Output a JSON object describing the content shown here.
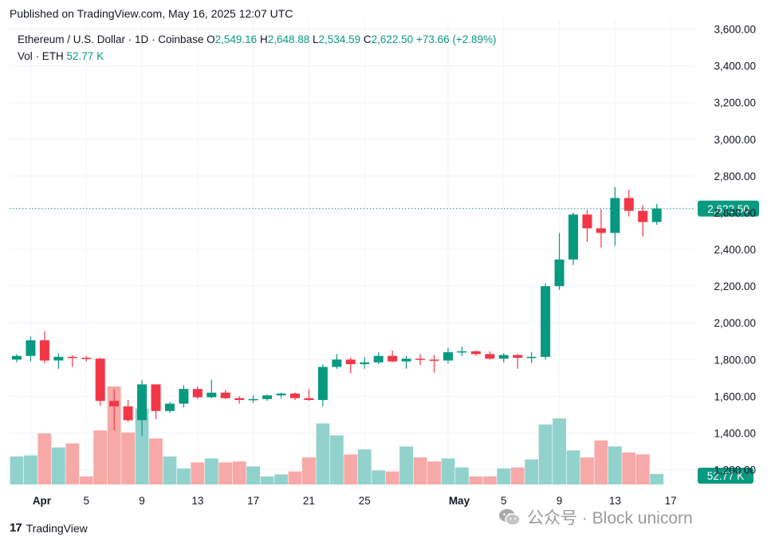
{
  "published": "Published on TradingView.com, May 16, 2025 12:07 UTC",
  "legend": {
    "symbol": "Ethereum / U.S. Dollar · 1D · Coinbase",
    "o_label": "O",
    "o": "2,549.16",
    "h_label": "H",
    "h": "2,648.88",
    "l_label": "L",
    "l": "2,534.59",
    "c_label": "C",
    "c": "2,622.50",
    "change": "+73.66 (+2.89%)",
    "vol_label": "Vol · ETH",
    "vol_value": "52.77 K"
  },
  "footer": {
    "logo_icon": "17",
    "logo_text": "TradingView"
  },
  "watermark": {
    "text": "公众号 · Block unicorn"
  },
  "colors": {
    "up": "#089981",
    "down": "#f23645",
    "vol_up": "#92d2cc",
    "vol_down": "#f7a9a7",
    "grid": "#f0f3fa"
  },
  "chart_data": {
    "type": "candlestick",
    "title": "Ethereum / U.S. Dollar · 1D · Coinbase",
    "y_ticks": [
      "3,600.00",
      "3,400.00",
      "3,200.00",
      "3,000.00",
      "2,800.00",
      "2,600.00",
      "2,400.00",
      "2,200.00",
      "2,000.00",
      "1,800.00",
      "1,600.00",
      "1,400.00",
      "1,200.00"
    ],
    "y_tick_values": [
      3600,
      3400,
      3200,
      3000,
      2800,
      2600,
      2400,
      2200,
      2000,
      1800,
      1600,
      1400,
      1200
    ],
    "ylim": [
      1120,
      3650
    ],
    "x_tick_labels": [
      {
        "label": "Apr",
        "index": 1,
        "bold": true
      },
      {
        "label": "5",
        "index": 5
      },
      {
        "label": "9",
        "index": 9
      },
      {
        "label": "13",
        "index": 13
      },
      {
        "label": "17",
        "index": 17
      },
      {
        "label": "21",
        "index": 21
      },
      {
        "label": "25",
        "index": 25
      },
      {
        "label": "May",
        "index": 31,
        "bold": true
      },
      {
        "label": "5",
        "index": 35
      },
      {
        "label": "9",
        "index": 39
      },
      {
        "label": "13",
        "index": 43
      },
      {
        "label": "17",
        "index": 47
      }
    ],
    "last_price_label": "2,622.50",
    "last_price": 2622.5,
    "last_volume_label": "52.77 K",
    "volume_max_k": 550,
    "candles": [
      {
        "o": 1800,
        "h": 1830,
        "l": 1785,
        "c": 1820,
        "v": 140
      },
      {
        "o": 1820,
        "h": 1925,
        "l": 1790,
        "c": 1905,
        "v": 145
      },
      {
        "o": 1905,
        "h": 1955,
        "l": 1780,
        "c": 1795,
        "v": 255
      },
      {
        "o": 1795,
        "h": 1835,
        "l": 1750,
        "c": 1815,
        "v": 185
      },
      {
        "o": 1815,
        "h": 1825,
        "l": 1760,
        "c": 1810,
        "v": 205
      },
      {
        "o": 1810,
        "h": 1820,
        "l": 1790,
        "c": 1805,
        "v": 40
      },
      {
        "o": 1805,
        "h": 1810,
        "l": 1550,
        "c": 1575,
        "v": 270
      },
      {
        "o": 1575,
        "h": 1640,
        "l": 1415,
        "c": 1545,
        "v": 490
      },
      {
        "o": 1545,
        "h": 1580,
        "l": 1460,
        "c": 1470,
        "v": 260
      },
      {
        "o": 1470,
        "h": 1690,
        "l": 1385,
        "c": 1665,
        "v": 380
      },
      {
        "o": 1665,
        "h": 1665,
        "l": 1475,
        "c": 1520,
        "v": 230
      },
      {
        "o": 1520,
        "h": 1570,
        "l": 1510,
        "c": 1560,
        "v": 140
      },
      {
        "o": 1560,
        "h": 1660,
        "l": 1540,
        "c": 1640,
        "v": 80
      },
      {
        "o": 1640,
        "h": 1655,
        "l": 1585,
        "c": 1595,
        "v": 110
      },
      {
        "o": 1595,
        "h": 1690,
        "l": 1590,
        "c": 1620,
        "v": 130
      },
      {
        "o": 1620,
        "h": 1635,
        "l": 1585,
        "c": 1590,
        "v": 110
      },
      {
        "o": 1590,
        "h": 1600,
        "l": 1560,
        "c": 1580,
        "v": 115
      },
      {
        "o": 1580,
        "h": 1605,
        "l": 1565,
        "c": 1585,
        "v": 90
      },
      {
        "o": 1585,
        "h": 1610,
        "l": 1575,
        "c": 1605,
        "v": 40
      },
      {
        "o": 1605,
        "h": 1620,
        "l": 1590,
        "c": 1615,
        "v": 50
      },
      {
        "o": 1615,
        "h": 1620,
        "l": 1580,
        "c": 1590,
        "v": 65
      },
      {
        "o": 1590,
        "h": 1640,
        "l": 1575,
        "c": 1580,
        "v": 135
      },
      {
        "o": 1580,
        "h": 1775,
        "l": 1545,
        "c": 1760,
        "v": 305
      },
      {
        "o": 1760,
        "h": 1830,
        "l": 1750,
        "c": 1800,
        "v": 245
      },
      {
        "o": 1800,
        "h": 1810,
        "l": 1725,
        "c": 1775,
        "v": 150
      },
      {
        "o": 1775,
        "h": 1815,
        "l": 1750,
        "c": 1785,
        "v": 175
      },
      {
        "o": 1785,
        "h": 1840,
        "l": 1775,
        "c": 1820,
        "v": 70
      },
      {
        "o": 1820,
        "h": 1850,
        "l": 1785,
        "c": 1790,
        "v": 65
      },
      {
        "o": 1790,
        "h": 1820,
        "l": 1750,
        "c": 1805,
        "v": 190
      },
      {
        "o": 1805,
        "h": 1830,
        "l": 1770,
        "c": 1800,
        "v": 135
      },
      {
        "o": 1800,
        "h": 1825,
        "l": 1730,
        "c": 1795,
        "v": 115
      },
      {
        "o": 1795,
        "h": 1865,
        "l": 1780,
        "c": 1840,
        "v": 130
      },
      {
        "o": 1840,
        "h": 1870,
        "l": 1820,
        "c": 1845,
        "v": 85
      },
      {
        "o": 1845,
        "h": 1850,
        "l": 1820,
        "c": 1830,
        "v": 40
      },
      {
        "o": 1830,
        "h": 1845,
        "l": 1800,
        "c": 1805,
        "v": 40
      },
      {
        "o": 1805,
        "h": 1835,
        "l": 1785,
        "c": 1825,
        "v": 80
      },
      {
        "o": 1825,
        "h": 1830,
        "l": 1750,
        "c": 1810,
        "v": 85
      },
      {
        "o": 1810,
        "h": 1840,
        "l": 1780,
        "c": 1815,
        "v": 125
      },
      {
        "o": 1815,
        "h": 2215,
        "l": 1800,
        "c": 2200,
        "v": 300
      },
      {
        "o": 2200,
        "h": 2490,
        "l": 2180,
        "c": 2345,
        "v": 330
      },
      {
        "o": 2345,
        "h": 2600,
        "l": 2315,
        "c": 2590,
        "v": 170
      },
      {
        "o": 2590,
        "h": 2615,
        "l": 2440,
        "c": 2515,
        "v": 135
      },
      {
        "o": 2515,
        "h": 2620,
        "l": 2410,
        "c": 2490,
        "v": 220
      },
      {
        "o": 2490,
        "h": 2740,
        "l": 2420,
        "c": 2680,
        "v": 190
      },
      {
        "o": 2680,
        "h": 2725,
        "l": 2580,
        "c": 2610,
        "v": 160
      },
      {
        "o": 2610,
        "h": 2640,
        "l": 2470,
        "c": 2549,
        "v": 150
      },
      {
        "o": 2549.16,
        "h": 2648.88,
        "l": 2534.59,
        "c": 2622.5,
        "v": 52.77
      }
    ]
  }
}
